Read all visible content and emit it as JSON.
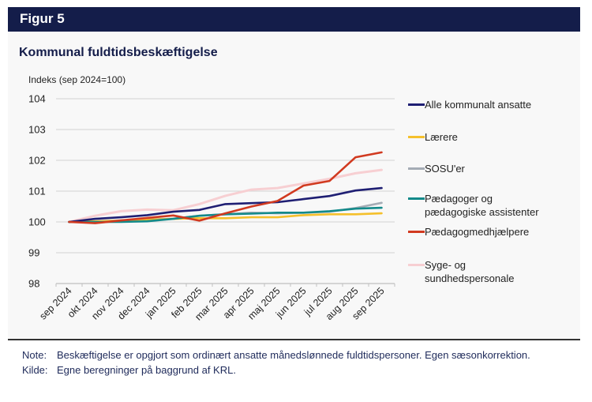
{
  "figure": {
    "label": "Figur 5",
    "colors": {
      "header_bg": "#141d4a",
      "panel_bg": "#f8f8f8",
      "title": "#141d4a"
    }
  },
  "notes": {
    "note_label": "Note:",
    "note_text": "Beskæftigelse er opgjort som ordinært ansatte månedslønnede fuldtidspersoner. Egen sæsonkorrektion.",
    "source_label": "Kilde:",
    "source_text": "Egne beregninger på baggrund af KRL."
  },
  "chart_data": {
    "type": "line",
    "title": "Kommunal fuldtidsbeskæftigelse",
    "ylabel": "Indeks (sep 2024=100)",
    "xlabel": "",
    "ylim": [
      98,
      104
    ],
    "yticks": [
      "98",
      "99",
      "100",
      "101",
      "102",
      "103",
      "104"
    ],
    "grid": true,
    "legend_position": "right",
    "categories": [
      "sep 2024",
      "okt 2024",
      "nov 2024",
      "dec 2024",
      "jan 2025",
      "feb 2025",
      "mar 2025",
      "apr 2025",
      "maj 2025",
      "jun 2025",
      "jul 2025",
      "aug 2025",
      "sep 2025"
    ],
    "series": [
      {
        "name": "Syge- og sundhedspersonale",
        "color": "#f7cfd2",
        "values": [
          100.0,
          100.2,
          100.35,
          100.4,
          100.38,
          100.58,
          100.85,
          101.05,
          101.1,
          101.25,
          101.4,
          101.58,
          101.69
        ]
      },
      {
        "name": "SOSU'er",
        "color": "#a5acb5",
        "values": [
          100.0,
          100.02,
          100.05,
          100.08,
          100.1,
          100.2,
          100.25,
          100.3,
          100.28,
          100.3,
          100.33,
          100.45,
          100.62
        ]
      },
      {
        "name": "Lærere",
        "color": "#f5c02c",
        "values": [
          100.0,
          100.02,
          100.04,
          100.07,
          100.1,
          100.12,
          100.12,
          100.15,
          100.15,
          100.22,
          100.25,
          100.25,
          100.28
        ]
      },
      {
        "name": "Pædagoger og pædagogiske assistenter",
        "color": "#138a8a",
        "values": [
          100.0,
          100.0,
          100.0,
          100.02,
          100.1,
          100.2,
          100.25,
          100.27,
          100.3,
          100.3,
          100.35,
          100.43,
          100.46
        ]
      },
      {
        "name": "Alle kommunalt ansatte",
        "color": "#1f1f73",
        "values": [
          100.0,
          100.1,
          100.15,
          100.22,
          100.33,
          100.39,
          100.58,
          100.61,
          100.64,
          100.74,
          100.84,
          101.02,
          101.1
        ]
      },
      {
        "name": "Pædagogmedhjælpere",
        "color": "#d13a20",
        "values": [
          100.0,
          99.96,
          100.05,
          100.13,
          100.21,
          100.04,
          100.28,
          100.5,
          100.68,
          101.18,
          101.33,
          102.1,
          102.26
        ]
      }
    ],
    "legend_order": [
      {
        "label": "Alle kommunalt ansatte",
        "color": "#1f1f73"
      },
      {
        "label": "Lærere",
        "color": "#f5c02c"
      },
      {
        "label": "SOSU'er",
        "color": "#a5acb5"
      },
      {
        "label": "Pædagoger og pædagogiske assistenter",
        "color": "#138a8a"
      },
      {
        "label": "Pædagogmedhjælpere",
        "color": "#d13a20"
      },
      {
        "label": "Syge- og sundhedspersonale",
        "color": "#f7cfd2"
      }
    ]
  }
}
